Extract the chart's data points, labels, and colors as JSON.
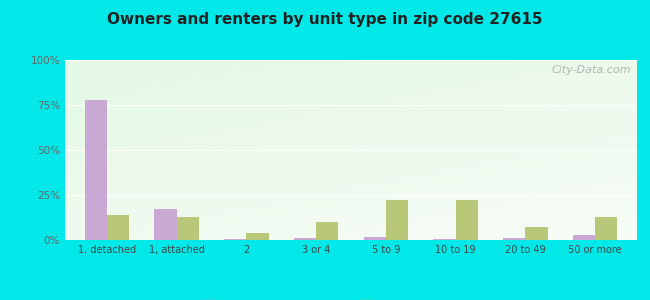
{
  "title": "Owners and renters by unit type in zip code 27615",
  "categories": [
    "1, detached",
    "1, attached",
    "2",
    "3 or 4",
    "5 to 9",
    "10 to 19",
    "20 to 49",
    "50 or more"
  ],
  "owner_values": [
    78,
    17,
    0.5,
    1,
    1.5,
    0.5,
    1,
    3
  ],
  "renter_values": [
    14,
    13,
    4,
    10,
    22,
    22,
    7,
    13
  ],
  "owner_color": "#c9a8d4",
  "renter_color": "#b8c878",
  "background_outer": "#00e8e8",
  "ylabel_color": "#666666",
  "xlabel_color": "#444444",
  "title_color": "#222222",
  "ylim": [
    0,
    100
  ],
  "yticks": [
    0,
    25,
    50,
    75,
    100
  ],
  "ytick_labels": [
    "0%",
    "25%",
    "50%",
    "75%",
    "100%"
  ],
  "watermark": "City-Data.com"
}
